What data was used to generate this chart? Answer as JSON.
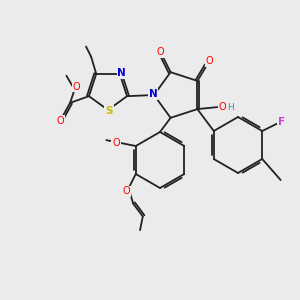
{
  "background_color": "#ebebeb",
  "bond_color": "#222222",
  "atom_colors": {
    "N": "#0000cc",
    "O": "#ff0000",
    "S": "#ccbb00",
    "F": "#cc44cc",
    "H": "#558899",
    "C": "#222222"
  },
  "figsize": [
    3.0,
    3.0
  ],
  "dpi": 100
}
